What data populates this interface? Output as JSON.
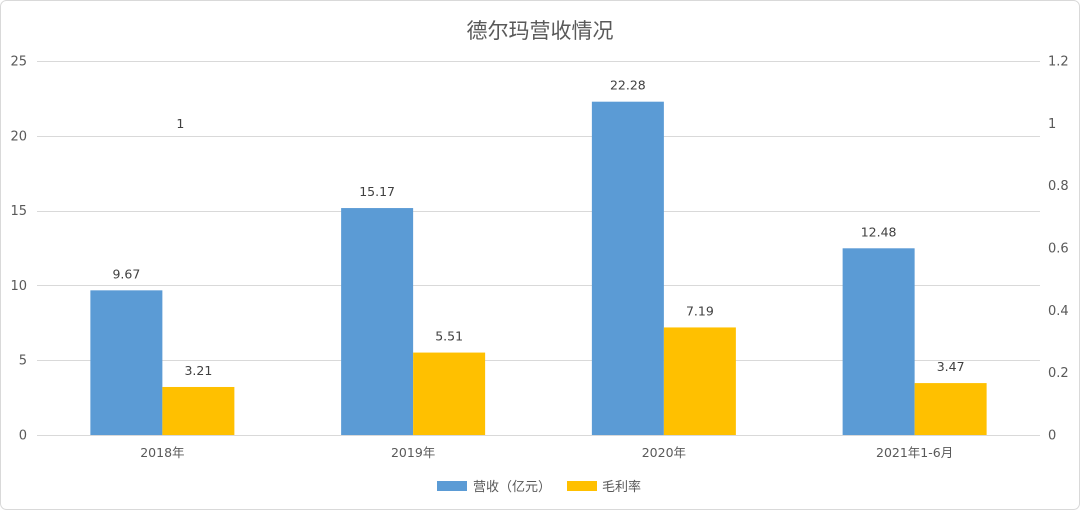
{
  "chart_data": {
    "type": "bar",
    "title": "德尔玛营收情况",
    "xlabel": "",
    "ylabel": "",
    "categories": [
      "2018年",
      "2019年",
      "2020年",
      "2021年1-6月"
    ],
    "series": [
      {
        "name": "营收（亿元）",
        "values": [
          9.67,
          15.17,
          22.28,
          12.48
        ],
        "labels": [
          "9.67",
          "15.17",
          "22.28",
          "12.48"
        ],
        "color": "#5B9BD5",
        "axis": "left"
      },
      {
        "name": "毛利率",
        "values": [
          3.21,
          5.51,
          7.19,
          3.47
        ],
        "labels": [
          "3.21",
          "5.51",
          "7.19",
          "3.47"
        ],
        "color": "#FFC000",
        "axis": "left"
      }
    ],
    "y_left": {
      "range": [
        0,
        25
      ],
      "ticks": [
        0,
        5,
        10,
        15,
        20,
        25
      ],
      "tick_labels": [
        "0",
        "5",
        "10",
        "15",
        "20",
        "25"
      ]
    },
    "y_right": {
      "range": [
        0,
        1.2
      ],
      "ticks": [
        0,
        0.2,
        0.4,
        0.6,
        0.8,
        1,
        1.2
      ],
      "tick_labels": [
        "0",
        "0.2",
        "0.4",
        "0.6",
        "0.8",
        "1",
        "1.2"
      ]
    },
    "annotations": [
      {
        "text": "1",
        "category": "2018年",
        "axis": "right",
        "value": 1
      }
    ],
    "grid": true,
    "legend": "bottom-center"
  }
}
